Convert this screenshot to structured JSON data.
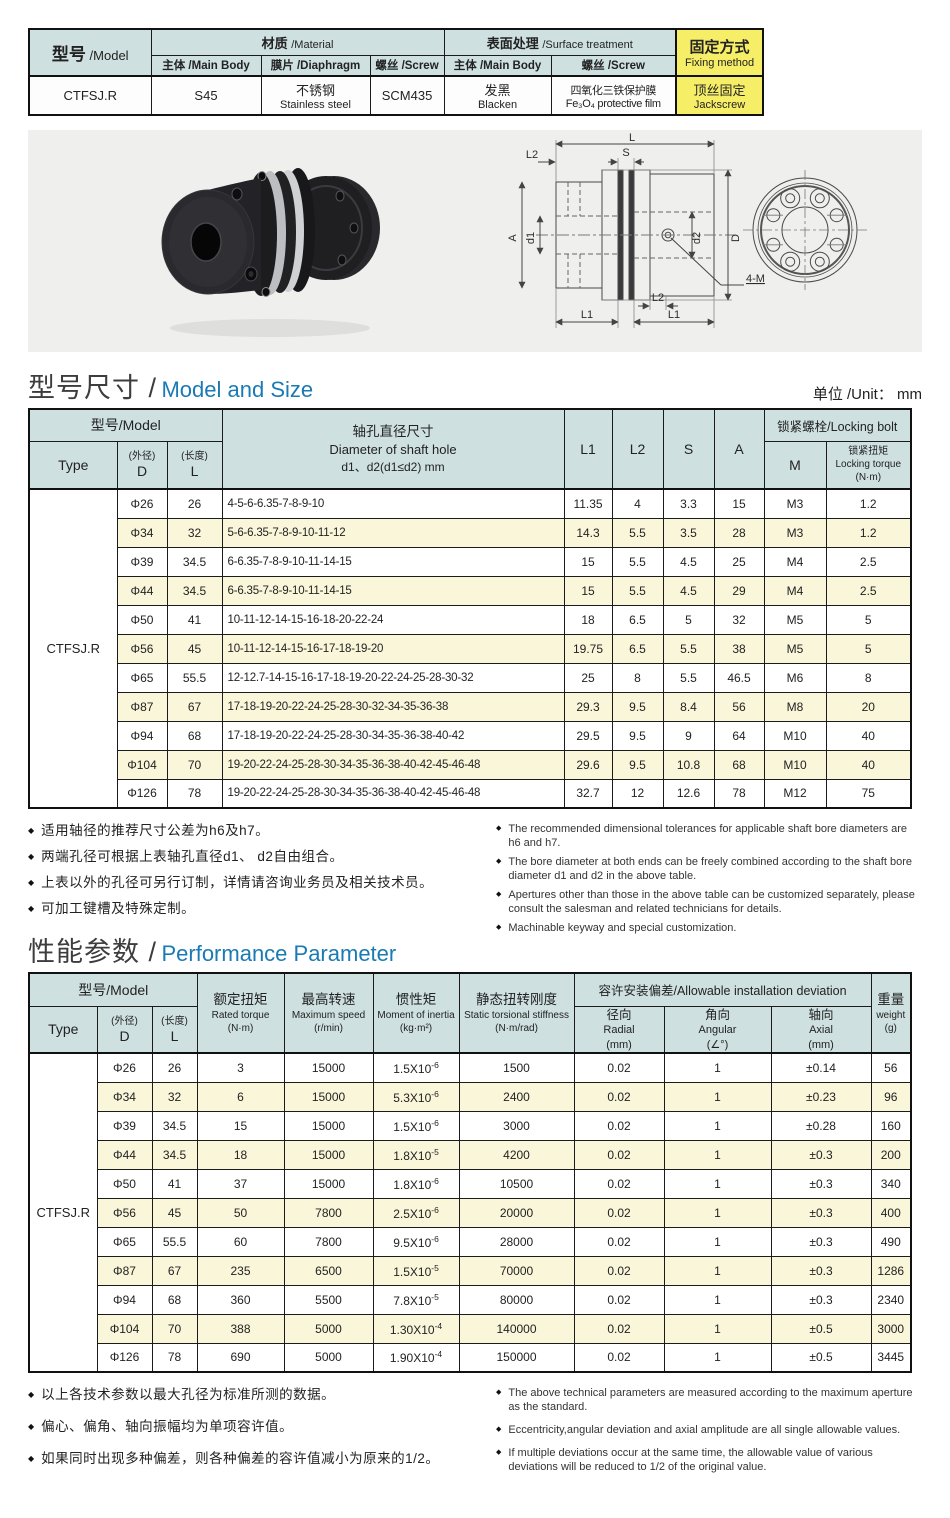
{
  "page": {
    "unit_label": "单位 /Unit： mm"
  },
  "spec_table": {
    "model_header_cn": "型号",
    "model_header_en": "/Model",
    "material_header_cn": "材质",
    "material_header_en": "/Material",
    "surface_header_cn": "表面处理",
    "surface_header_en": "/Surface treatment",
    "fixing_cn": "固定方式",
    "fixing_en": "Fixing method",
    "sub_main1": "主体 /Main Body",
    "sub_diaphragm": "膜片 /Diaphragm",
    "sub_screw1": "螺丝 /Screw",
    "sub_main2": "主体 /Main Body",
    "sub_screw2": "螺丝 /Screw",
    "model_value": "CTFSJ.R",
    "main_body_value": "S45",
    "diaphragm_cn": "不锈钢",
    "diaphragm_en": "Stainless steel",
    "screw_value": "SCM435",
    "surface_main_cn": "发黑",
    "surface_main_en": "Blacken",
    "surface_screw_cn": "四氧化三铁保护膜",
    "surface_screw_en": "Fe₃O₄ protective film",
    "fixing_value_cn": "顶丝固定",
    "fixing_value_en": "Jackscrew"
  },
  "drawing": {
    "dim_l": "L",
    "dim_l2_top": "L2",
    "dim_s": "S",
    "dim_a": "A",
    "dim_d1": "d1",
    "dim_d2": "d2",
    "dim_d": "D",
    "dim_l1_left": "L1",
    "dim_l1_right": "L1",
    "dim_l2_bottom": "L2",
    "dim_4m": "4-M"
  },
  "size_section": {
    "title_cn": "型号尺寸 /",
    "title_en": "Model and Size",
    "headers": {
      "model": "型号/Model",
      "type": "Type",
      "d_cn": "(外径)",
      "d": "D",
      "l_cn": "(长度)",
      "l": "L",
      "hole_cn": "轴孔直径尺寸",
      "hole_en": "Diameter of shaft hole",
      "hole_sub": "d1、d2(d1≤d2) mm",
      "l1": "L1",
      "l2": "L2",
      "s": "S",
      "a": "A",
      "lock": "锁紧螺栓/Locking bolt",
      "m": "M",
      "torque_cn": "锁紧扭矩",
      "torque_en": "Locking torque",
      "torque_unit": "(N·m)"
    },
    "type_value": "CTFSJ.R",
    "rows": [
      {
        "d": "Φ26",
        "l": "26",
        "holes": "4-5-6-6.35-7-8-9-10",
        "l1": "11.35",
        "l2": "4",
        "s": "3.3",
        "a": "15",
        "m": "M3",
        "tq": "1.2"
      },
      {
        "d": "Φ34",
        "l": "32",
        "holes": "5-6-6.35-7-8-9-10-11-12",
        "l1": "14.3",
        "l2": "5.5",
        "s": "3.5",
        "a": "28",
        "m": "M3",
        "tq": "1.2"
      },
      {
        "d": "Φ39",
        "l": "34.5",
        "holes": "6-6.35-7-8-9-10-11-14-15",
        "l1": "15",
        "l2": "5.5",
        "s": "4.5",
        "a": "25",
        "m": "M4",
        "tq": "2.5"
      },
      {
        "d": "Φ44",
        "l": "34.5",
        "holes": "6-6.35-7-8-9-10-11-14-15",
        "l1": "15",
        "l2": "5.5",
        "s": "4.5",
        "a": "29",
        "m": "M4",
        "tq": "2.5"
      },
      {
        "d": "Φ50",
        "l": "41",
        "holes": "10-11-12-14-15-16-18-20-22-24",
        "l1": "18",
        "l2": "6.5",
        "s": "5",
        "a": "32",
        "m": "M5",
        "tq": "5"
      },
      {
        "d": "Φ56",
        "l": "45",
        "holes": "10-11-12-14-15-16-17-18-19-20",
        "l1": "19.75",
        "l2": "6.5",
        "s": "5.5",
        "a": "38",
        "m": "M5",
        "tq": "5"
      },
      {
        "d": "Φ65",
        "l": "55.5",
        "holes": "12-12.7-14-15-16-17-18-19-20-22-24-25-28-30-32",
        "l1": "25",
        "l2": "8",
        "s": "5.5",
        "a": "46.5",
        "m": "M6",
        "tq": "8"
      },
      {
        "d": "Φ87",
        "l": "67",
        "holes": "17-18-19-20-22-24-25-28-30-32-34-35-36-38",
        "l1": "29.3",
        "l2": "9.5",
        "s": "8.4",
        "a": "56",
        "m": "M8",
        "tq": "20"
      },
      {
        "d": "Φ94",
        "l": "68",
        "holes": "17-18-19-20-22-24-25-28-30-34-35-36-38-40-42",
        "l1": "29.5",
        "l2": "9.5",
        "s": "9",
        "a": "64",
        "m": "M10",
        "tq": "40"
      },
      {
        "d": "Φ104",
        "l": "70",
        "holes": "19-20-22-24-25-28-30-34-35-36-38-40-42-45-46-48",
        "l1": "29.6",
        "l2": "9.5",
        "s": "10.8",
        "a": "68",
        "m": "M10",
        "tq": "40"
      },
      {
        "d": "Φ126",
        "l": "78",
        "holes": "19-20-22-24-25-28-30-34-35-36-38-40-42-45-46-48",
        "l1": "32.7",
        "l2": "12",
        "s": "12.6",
        "a": "78",
        "m": "M12",
        "tq": "75"
      }
    ]
  },
  "size_notes_cn": [
    "适用轴径的推荐尺寸公差为h6及h7。",
    "两端孔径可根据上表轴孔直径d1、 d2自由组合。",
    "上表以外的孔径可另行订制，详情请咨询业务员及相关技术员。",
    "可加工键槽及特殊定制。"
  ],
  "size_notes_en": [
    "The recommended dimensional tolerances for applicable shaft bore diameters are h6 and h7.",
    "The bore diameter at both ends can be freely combined according to the shaft bore diameter d1 and d2 in the above table.",
    "Apertures other than those in the above table can be customized separately, please consult the salesman and related technicians for details.",
    "Machinable keyway and special customization."
  ],
  "perf_section": {
    "title_cn": "性能参数 /",
    "title_en": "Performance Parameter",
    "headers": {
      "model": "型号/Model",
      "type": "Type",
      "d_cn": "(外径)",
      "d": "D",
      "l_cn": "(长度)",
      "l": "L",
      "torque_cn": "额定扭矩",
      "torque_en": "Rated torque",
      "torque_unit": "(N·m)",
      "speed_cn": "最高转速",
      "speed_en": "Maximum speed",
      "speed_unit": "(r/min)",
      "inertia_cn": "惯性矩",
      "inertia_en": "Moment of inertia",
      "inertia_unit": "(kg·m²)",
      "stiffness_cn": "静态扭转刚度",
      "stiffness_en": "Static torsional stiffness",
      "stiffness_unit": "(N·m/rad)",
      "deviation": "容许安装偏差/Allowable installation deviation",
      "radial_cn": "径向",
      "radial_en": "Radial",
      "radial_unit": "(mm)",
      "angular_cn": "角向",
      "angular_en": "Angular",
      "angular_unit": "(∠°)",
      "axial_cn": "轴向",
      "axial_en": "Axial",
      "axial_unit": "(mm)",
      "weight_cn": "重量",
      "weight_en": "weight",
      "weight_unit": "(g)"
    },
    "type_value": "CTFSJ.R",
    "rows": [
      {
        "d": "Φ26",
        "l": "26",
        "torque": "3",
        "speed": "15000",
        "ib": "1.5X10",
        "ie": "-6",
        "stiffness": "1500",
        "radial": "0.02",
        "angular": "1",
        "axial": "±0.14",
        "weight": "56"
      },
      {
        "d": "Φ34",
        "l": "32",
        "torque": "6",
        "speed": "15000",
        "ib": "5.3X10",
        "ie": "-6",
        "stiffness": "2400",
        "radial": "0.02",
        "angular": "1",
        "axial": "±0.23",
        "weight": "96"
      },
      {
        "d": "Φ39",
        "l": "34.5",
        "torque": "15",
        "speed": "15000",
        "ib": "1.5X10",
        "ie": "-6",
        "stiffness": "3000",
        "radial": "0.02",
        "angular": "1",
        "axial": "±0.28",
        "weight": "160"
      },
      {
        "d": "Φ44",
        "l": "34.5",
        "torque": "18",
        "speed": "15000",
        "ib": "1.8X10",
        "ie": "-5",
        "stiffness": "4200",
        "radial": "0.02",
        "angular": "1",
        "axial": "±0.3",
        "weight": "200"
      },
      {
        "d": "Φ50",
        "l": "41",
        "torque": "37",
        "speed": "15000",
        "ib": "1.8X10",
        "ie": "-6",
        "stiffness": "10500",
        "radial": "0.02",
        "angular": "1",
        "axial": "±0.3",
        "weight": "340"
      },
      {
        "d": "Φ56",
        "l": "45",
        "torque": "50",
        "speed": "7800",
        "ib": "2.5X10",
        "ie": "-6",
        "stiffness": "20000",
        "radial": "0.02",
        "angular": "1",
        "axial": "±0.3",
        "weight": "400"
      },
      {
        "d": "Φ65",
        "l": "55.5",
        "torque": "60",
        "speed": "7800",
        "ib": "9.5X10",
        "ie": "-6",
        "stiffness": "28000",
        "radial": "0.02",
        "angular": "1",
        "axial": "±0.3",
        "weight": "490"
      },
      {
        "d": "Φ87",
        "l": "67",
        "torque": "235",
        "speed": "6500",
        "ib": "1.5X10",
        "ie": "-5",
        "stiffness": "70000",
        "radial": "0.02",
        "angular": "1",
        "axial": "±0.3",
        "weight": "1286"
      },
      {
        "d": "Φ94",
        "l": "68",
        "torque": "360",
        "speed": "5500",
        "ib": "7.8X10",
        "ie": "-5",
        "stiffness": "80000",
        "radial": "0.02",
        "angular": "1",
        "axial": "±0.3",
        "weight": "2340"
      },
      {
        "d": "Φ104",
        "l": "70",
        "torque": "388",
        "speed": "5000",
        "ib": "1.30X10",
        "ie": "-4",
        "stiffness": "140000",
        "radial": "0.02",
        "angular": "1",
        "axial": "±0.5",
        "weight": "3000"
      },
      {
        "d": "Φ126",
        "l": "78",
        "torque": "690",
        "speed": "5000",
        "ib": "1.90X10",
        "ie": "-4",
        "stiffness": "150000",
        "radial": "0.02",
        "angular": "1",
        "axial": "±0.5",
        "weight": "3445"
      }
    ]
  },
  "perf_notes_cn": [
    "以上各技术参数以最大孔径为标准所测的数据。",
    "偏心、偏角、轴向振幅均为单项容许值。",
    "如果同时出现多种偏差，则各种偏差的容许值减小为原来的1/2。"
  ],
  "perf_notes_en": [
    "The above technical parameters are measured according to the maximum aperture as the standard.",
    "Eccentricity,angular deviation and axial amplitude are all single allowable values.",
    "If multiple deviations occur at the same time, the allowable value of various deviations will be reduced to 1/2 of the original value."
  ]
}
